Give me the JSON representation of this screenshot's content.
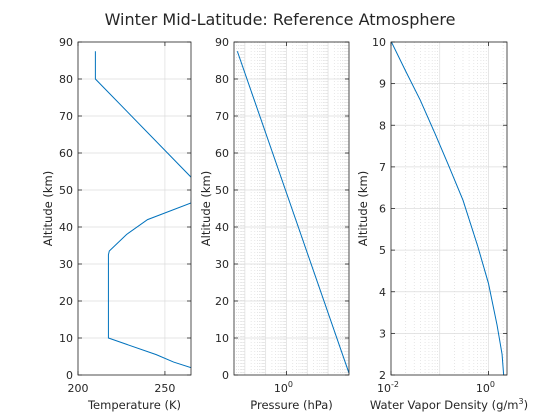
{
  "figure": {
    "title": "Winter Mid-Latitude: Reference Atmosphere",
    "line_color": "#0072BD",
    "grid_color": "#dcdcdc",
    "axis_color": "#262626"
  },
  "chart_data": [
    {
      "type": "line",
      "xlabel": "Temperature (K)",
      "ylabel": "Altitude (km)",
      "xlim": [
        200,
        265
      ],
      "ylim": [
        0,
        90
      ],
      "xticks": [
        "200",
        "250"
      ],
      "yticks": [
        "0",
        "10",
        "20",
        "30",
        "40",
        "50",
        "60",
        "70",
        "80",
        "90"
      ],
      "grid": true,
      "series": [
        {
          "x": [
            272,
            265,
            255,
            245,
            217.5,
            217.5,
            217.5,
            218,
            228,
            240,
            265,
            266,
            210,
            210
          ],
          "y": [
            0,
            2,
            3.5,
            5.5,
            10,
            20,
            32.5,
            33.5,
            38,
            42,
            46.5,
            53,
            80,
            87.5
          ]
        }
      ]
    },
    {
      "type": "line",
      "xlabel": "Pressure (hPa)",
      "ylabel": "Altitude (km)",
      "xscale": "log",
      "xlim": [
        0.003,
        1018
      ],
      "ylim": [
        0,
        90
      ],
      "xticks": [
        "10",
        "0"
      ],
      "yticks": [
        "0",
        "10",
        "20",
        "30",
        "40",
        "50",
        "60",
        "70",
        "80",
        "90"
      ],
      "grid": true,
      "series": [
        {
          "x": [
            1018,
            0.00434
          ],
          "y": [
            0.5,
            87.5
          ]
        }
      ]
    },
    {
      "type": "line",
      "xlabel": "Water Vapor Density (g/m",
      "xlabel_sup": "3",
      "xlabel_end": ")",
      "ylabel": "Altitude (km)",
      "xscale": "log",
      "xlim": [
        0.01,
        2.4
      ],
      "ylim": [
        2,
        10
      ],
      "xticks": [
        {
          "base": "10",
          "exp": "-2"
        },
        {
          "base": "10",
          "exp": "0"
        }
      ],
      "yticks": [
        "2",
        "3",
        "4",
        "5",
        "6",
        "7",
        "8",
        "9",
        "10"
      ],
      "grid": true,
      "series": [
        {
          "x": [
            0.0102,
            0.02,
            0.04,
            0.08,
            0.15,
            0.3,
            0.6,
            1.0,
            1.5,
            1.9,
            2.05
          ],
          "y": [
            10,
            9.3,
            8.6,
            7.8,
            7.05,
            6.2,
            5.1,
            4.2,
            3.2,
            2.5,
            2
          ]
        }
      ]
    }
  ]
}
